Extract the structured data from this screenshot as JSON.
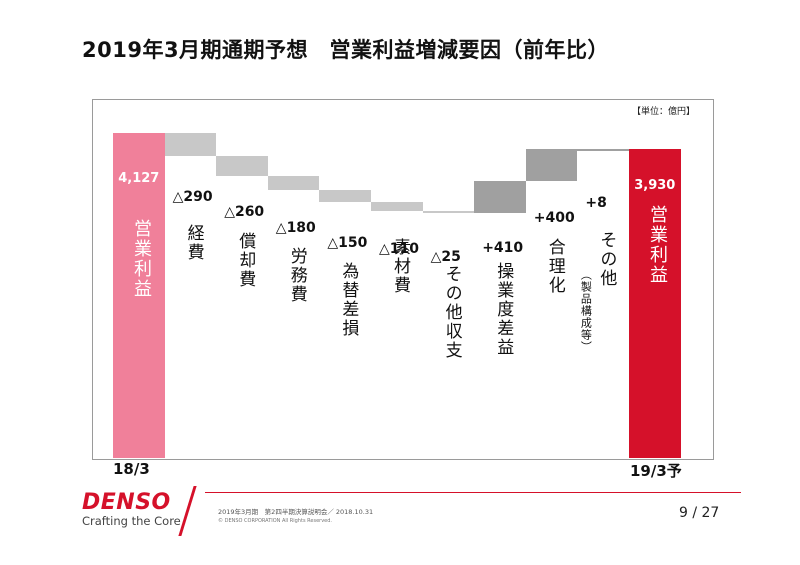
{
  "slide": {
    "title": "2019年3月期通期予想　営業利益増減要因（前年比）",
    "page": "9 / 27"
  },
  "chart_data": {
    "type": "bar",
    "subtype": "waterfall",
    "unit_label": "【単位：億円】",
    "start": {
      "category": "18/3",
      "name": "営業利益",
      "value": 4127,
      "value_label": "4,127",
      "color": "#f0809a"
    },
    "end": {
      "category": "19/3予",
      "name": "営業利益",
      "value": 3930,
      "value_label": "3,930",
      "color": "#d5112a"
    },
    "steps": [
      {
        "name": "経費",
        "value": -290,
        "label": "△290",
        "color": "#c8c8c8"
      },
      {
        "name": "償却費",
        "value": -260,
        "label": "△260",
        "color": "#c8c8c8"
      },
      {
        "name": "労務費",
        "value": -180,
        "label": "△180",
        "color": "#c8c8c8"
      },
      {
        "name": "為替差損",
        "value": -150,
        "label": "△150",
        "color": "#c8c8c8"
      },
      {
        "name": "素材費",
        "value": -110,
        "label": "△110",
        "color": "#c8c8c8"
      },
      {
        "name": "その他収支",
        "value": -25,
        "label": "△25",
        "color": "#c8c8c8"
      },
      {
        "name": "操業度差益",
        "value": 410,
        "label": "+410",
        "color": "#a0a0a0"
      },
      {
        "name": "合理化",
        "value": 400,
        "label": "+400",
        "color": "#a0a0a0"
      },
      {
        "name": "その他",
        "note": "（製品構成等）",
        "value": 8,
        "label": "+8",
        "color": "#a0a0a0"
      }
    ]
  },
  "footer": {
    "logo": "DENSO",
    "tagline": "Crafting the Core",
    "meta": "2019年3月期　第2四半期決算説明会／ 2018.10.31",
    "copyright": "© DENSO CORPORATION All Rights Reserved."
  }
}
